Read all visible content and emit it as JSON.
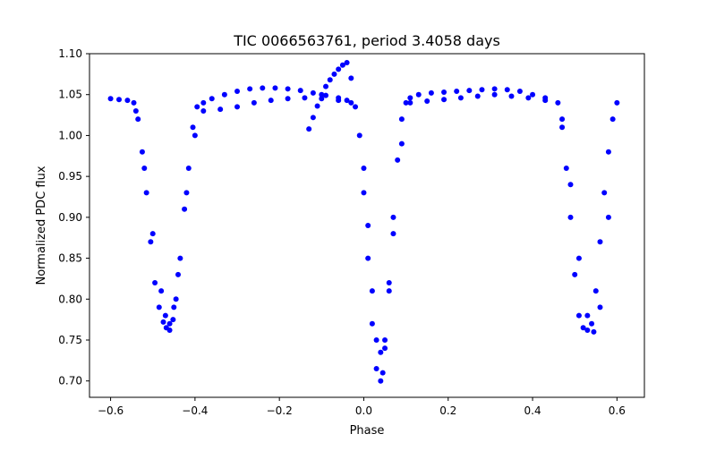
{
  "chart_data": {
    "type": "scatter",
    "title": "TIC 0066563761, period 3.4058 days",
    "xlabel": "Phase",
    "ylabel": "Normalized PDC flux",
    "xlim": [
      -0.65,
      0.665
    ],
    "ylim": [
      0.68,
      1.1
    ],
    "xticks": [
      -0.6,
      -0.4,
      -0.2,
      0.0,
      0.2,
      0.4,
      0.6
    ],
    "xtick_labels": [
      "−0.6",
      "−0.4",
      "−0.2",
      "0.0",
      "0.2",
      "0.4",
      "0.6"
    ],
    "yticks": [
      0.7,
      0.75,
      0.8,
      0.85,
      0.9,
      0.95,
      1.0,
      1.05,
      1.1
    ],
    "ytick_labels": [
      "0.70",
      "0.75",
      "0.80",
      "0.85",
      "0.90",
      "0.95",
      "1.00",
      "1.05",
      "1.10"
    ],
    "grid": false,
    "legend": "none",
    "marker_color": "#0000ff",
    "series": [
      {
        "x": [
          -0.6,
          -0.58,
          -0.56,
          -0.545,
          -0.535,
          -0.525,
          -0.515,
          -0.505,
          -0.495,
          -0.485,
          -0.475,
          -0.468,
          -0.46,
          -0.452,
          -0.445,
          -0.435,
          -0.425,
          -0.415,
          -0.405,
          -0.395,
          -0.38,
          -0.36,
          -0.33,
          -0.3,
          -0.27,
          -0.24,
          -0.21,
          -0.18,
          -0.15,
          -0.12,
          -0.09,
          -0.06,
          -0.04,
          -0.02,
          -0.01,
          0.0,
          0.01,
          0.02,
          0.03,
          0.04,
          0.045,
          0.05,
          0.06,
          0.07,
          0.08,
          0.09,
          0.1,
          0.11,
          0.13,
          0.16,
          0.19,
          0.22,
          0.25,
          0.28,
          0.31,
          0.34,
          0.37,
          0.4,
          0.43,
          0.46,
          0.47,
          0.48,
          0.49,
          0.5,
          0.51,
          0.52,
          0.53,
          0.54,
          0.55,
          0.56,
          0.57,
          0.58,
          0.59,
          0.6
        ],
        "y": [
          1.045,
          1.044,
          1.043,
          1.04,
          1.02,
          0.98,
          0.93,
          0.87,
          0.82,
          0.79,
          0.772,
          0.765,
          0.762,
          0.775,
          0.8,
          0.85,
          0.91,
          0.96,
          1.01,
          1.035,
          1.04,
          1.045,
          1.05,
          1.054,
          1.057,
          1.058,
          1.058,
          1.057,
          1.055,
          1.052,
          1.049,
          1.046,
          1.043,
          1.035,
          1.0,
          0.93,
          0.85,
          0.77,
          0.715,
          0.7,
          0.71,
          0.74,
          0.82,
          0.9,
          0.97,
          1.02,
          1.04,
          1.046,
          1.05,
          1.052,
          1.053,
          1.054,
          1.055,
          1.056,
          1.057,
          1.056,
          1.054,
          1.05,
          1.046,
          1.04,
          1.01,
          0.96,
          0.9,
          0.83,
          0.78,
          0.765,
          0.762,
          0.77,
          0.81,
          0.87,
          0.93,
          0.98,
          1.02,
          1.04
        ]
      },
      {
        "x": [
          -0.54,
          -0.52,
          -0.5,
          -0.48,
          -0.47,
          -0.46,
          -0.45,
          -0.44,
          -0.42,
          -0.4,
          -0.0,
          0.01,
          0.02,
          0.03,
          0.04,
          0.05,
          0.06,
          0.07,
          0.09,
          0.47,
          0.49,
          0.51,
          0.53,
          0.545,
          0.56,
          0.58
        ],
        "y": [
          1.03,
          0.96,
          0.88,
          0.81,
          0.78,
          0.77,
          0.79,
          0.83,
          0.93,
          1.0,
          0.96,
          0.89,
          0.81,
          0.75,
          0.735,
          0.75,
          0.81,
          0.88,
          0.99,
          1.02,
          0.94,
          0.85,
          0.78,
          0.76,
          0.79,
          0.9
        ]
      },
      {
        "x": [
          -0.38,
          -0.34,
          -0.3,
          -0.26,
          -0.22,
          -0.18,
          -0.14,
          -0.1,
          -0.06,
          -0.03,
          0.11,
          0.15,
          0.19,
          0.23,
          0.27,
          0.31,
          0.35,
          0.39,
          0.43
        ],
        "y": [
          1.03,
          1.032,
          1.035,
          1.04,
          1.043,
          1.045,
          1.046,
          1.045,
          1.043,
          1.04,
          1.04,
          1.042,
          1.044,
          1.046,
          1.048,
          1.05,
          1.048,
          1.046,
          1.043
        ]
      },
      {
        "x": [
          -0.13,
          -0.12,
          -0.11,
          -0.1,
          -0.09,
          -0.08,
          -0.07,
          -0.06,
          -0.05,
          -0.04,
          -0.03
        ],
        "y": [
          1.008,
          1.022,
          1.036,
          1.05,
          1.06,
          1.068,
          1.075,
          1.081,
          1.086,
          1.089,
          1.07
        ]
      }
    ]
  }
}
